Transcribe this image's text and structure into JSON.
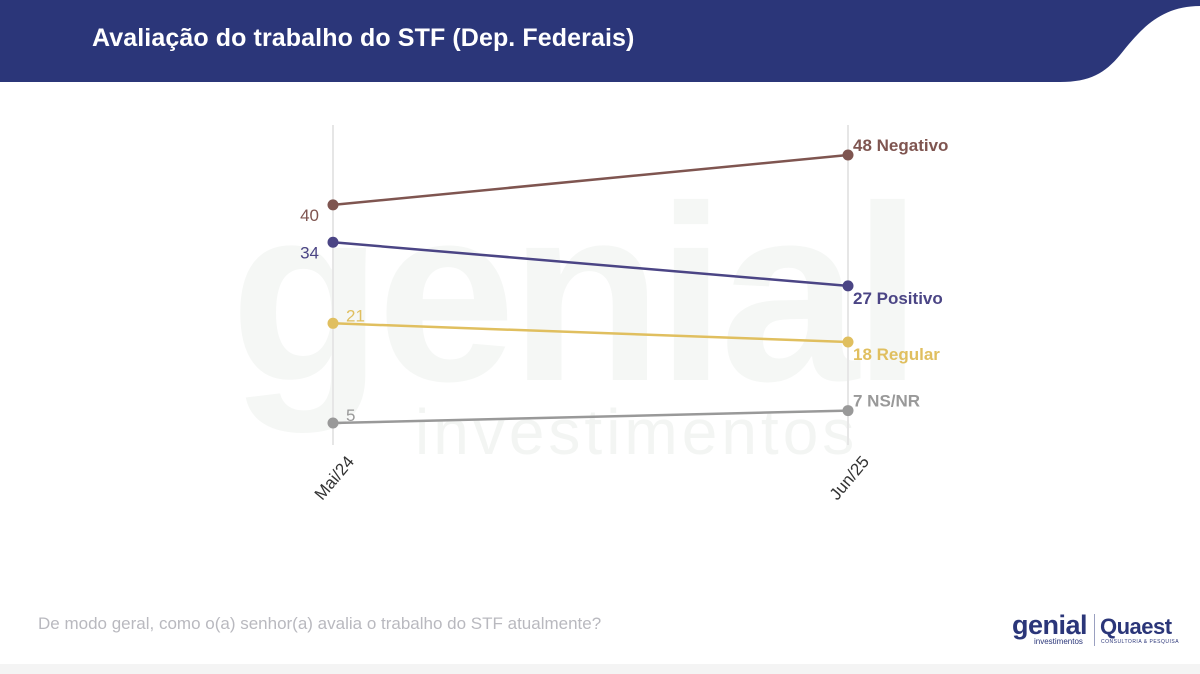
{
  "header": {
    "title": "Avaliação do trabalho do STF (Dep. Federais)",
    "bg_color": "#2b3679"
  },
  "watermark": {
    "big": "genial",
    "small": "investimentos"
  },
  "chart_data": {
    "type": "line",
    "title": "Avaliação do trabalho do STF (Dep. Federais)",
    "categories": [
      "Mai/24",
      "Jun/25"
    ],
    "ylim": [
      0,
      55
    ],
    "grid": "vertical",
    "legend": "end-labels",
    "series": [
      {
        "name": "Negativo",
        "values": [
          40,
          48
        ],
        "color": "#7f5550",
        "start_label": "40",
        "end_label": "48 Negativo",
        "start_label_side": "left"
      },
      {
        "name": "Positivo",
        "values": [
          34,
          27
        ],
        "color": "#4b4585",
        "start_label": "34",
        "end_label": "27 Positivo",
        "start_label_side": "left"
      },
      {
        "name": "Regular",
        "values": [
          21,
          18
        ],
        "color": "#e0bf5f",
        "start_label": "21",
        "end_label": "18 Regular",
        "start_label_side": "right"
      },
      {
        "name": "NS/NR",
        "values": [
          5,
          7
        ],
        "color": "#999999",
        "start_label": "5",
        "end_label": "7 NS/NR",
        "start_label_side": "right"
      }
    ]
  },
  "footer": {
    "question": "De modo geral, como o(a) senhor(a) avalia o trabalho do STF atualmente?",
    "logo_genial": "genial",
    "logo_genial_sub": "investimentos",
    "logo_quaest": "Quaest",
    "logo_quaest_sub": "CONSULTORIA & PESQUISA"
  }
}
